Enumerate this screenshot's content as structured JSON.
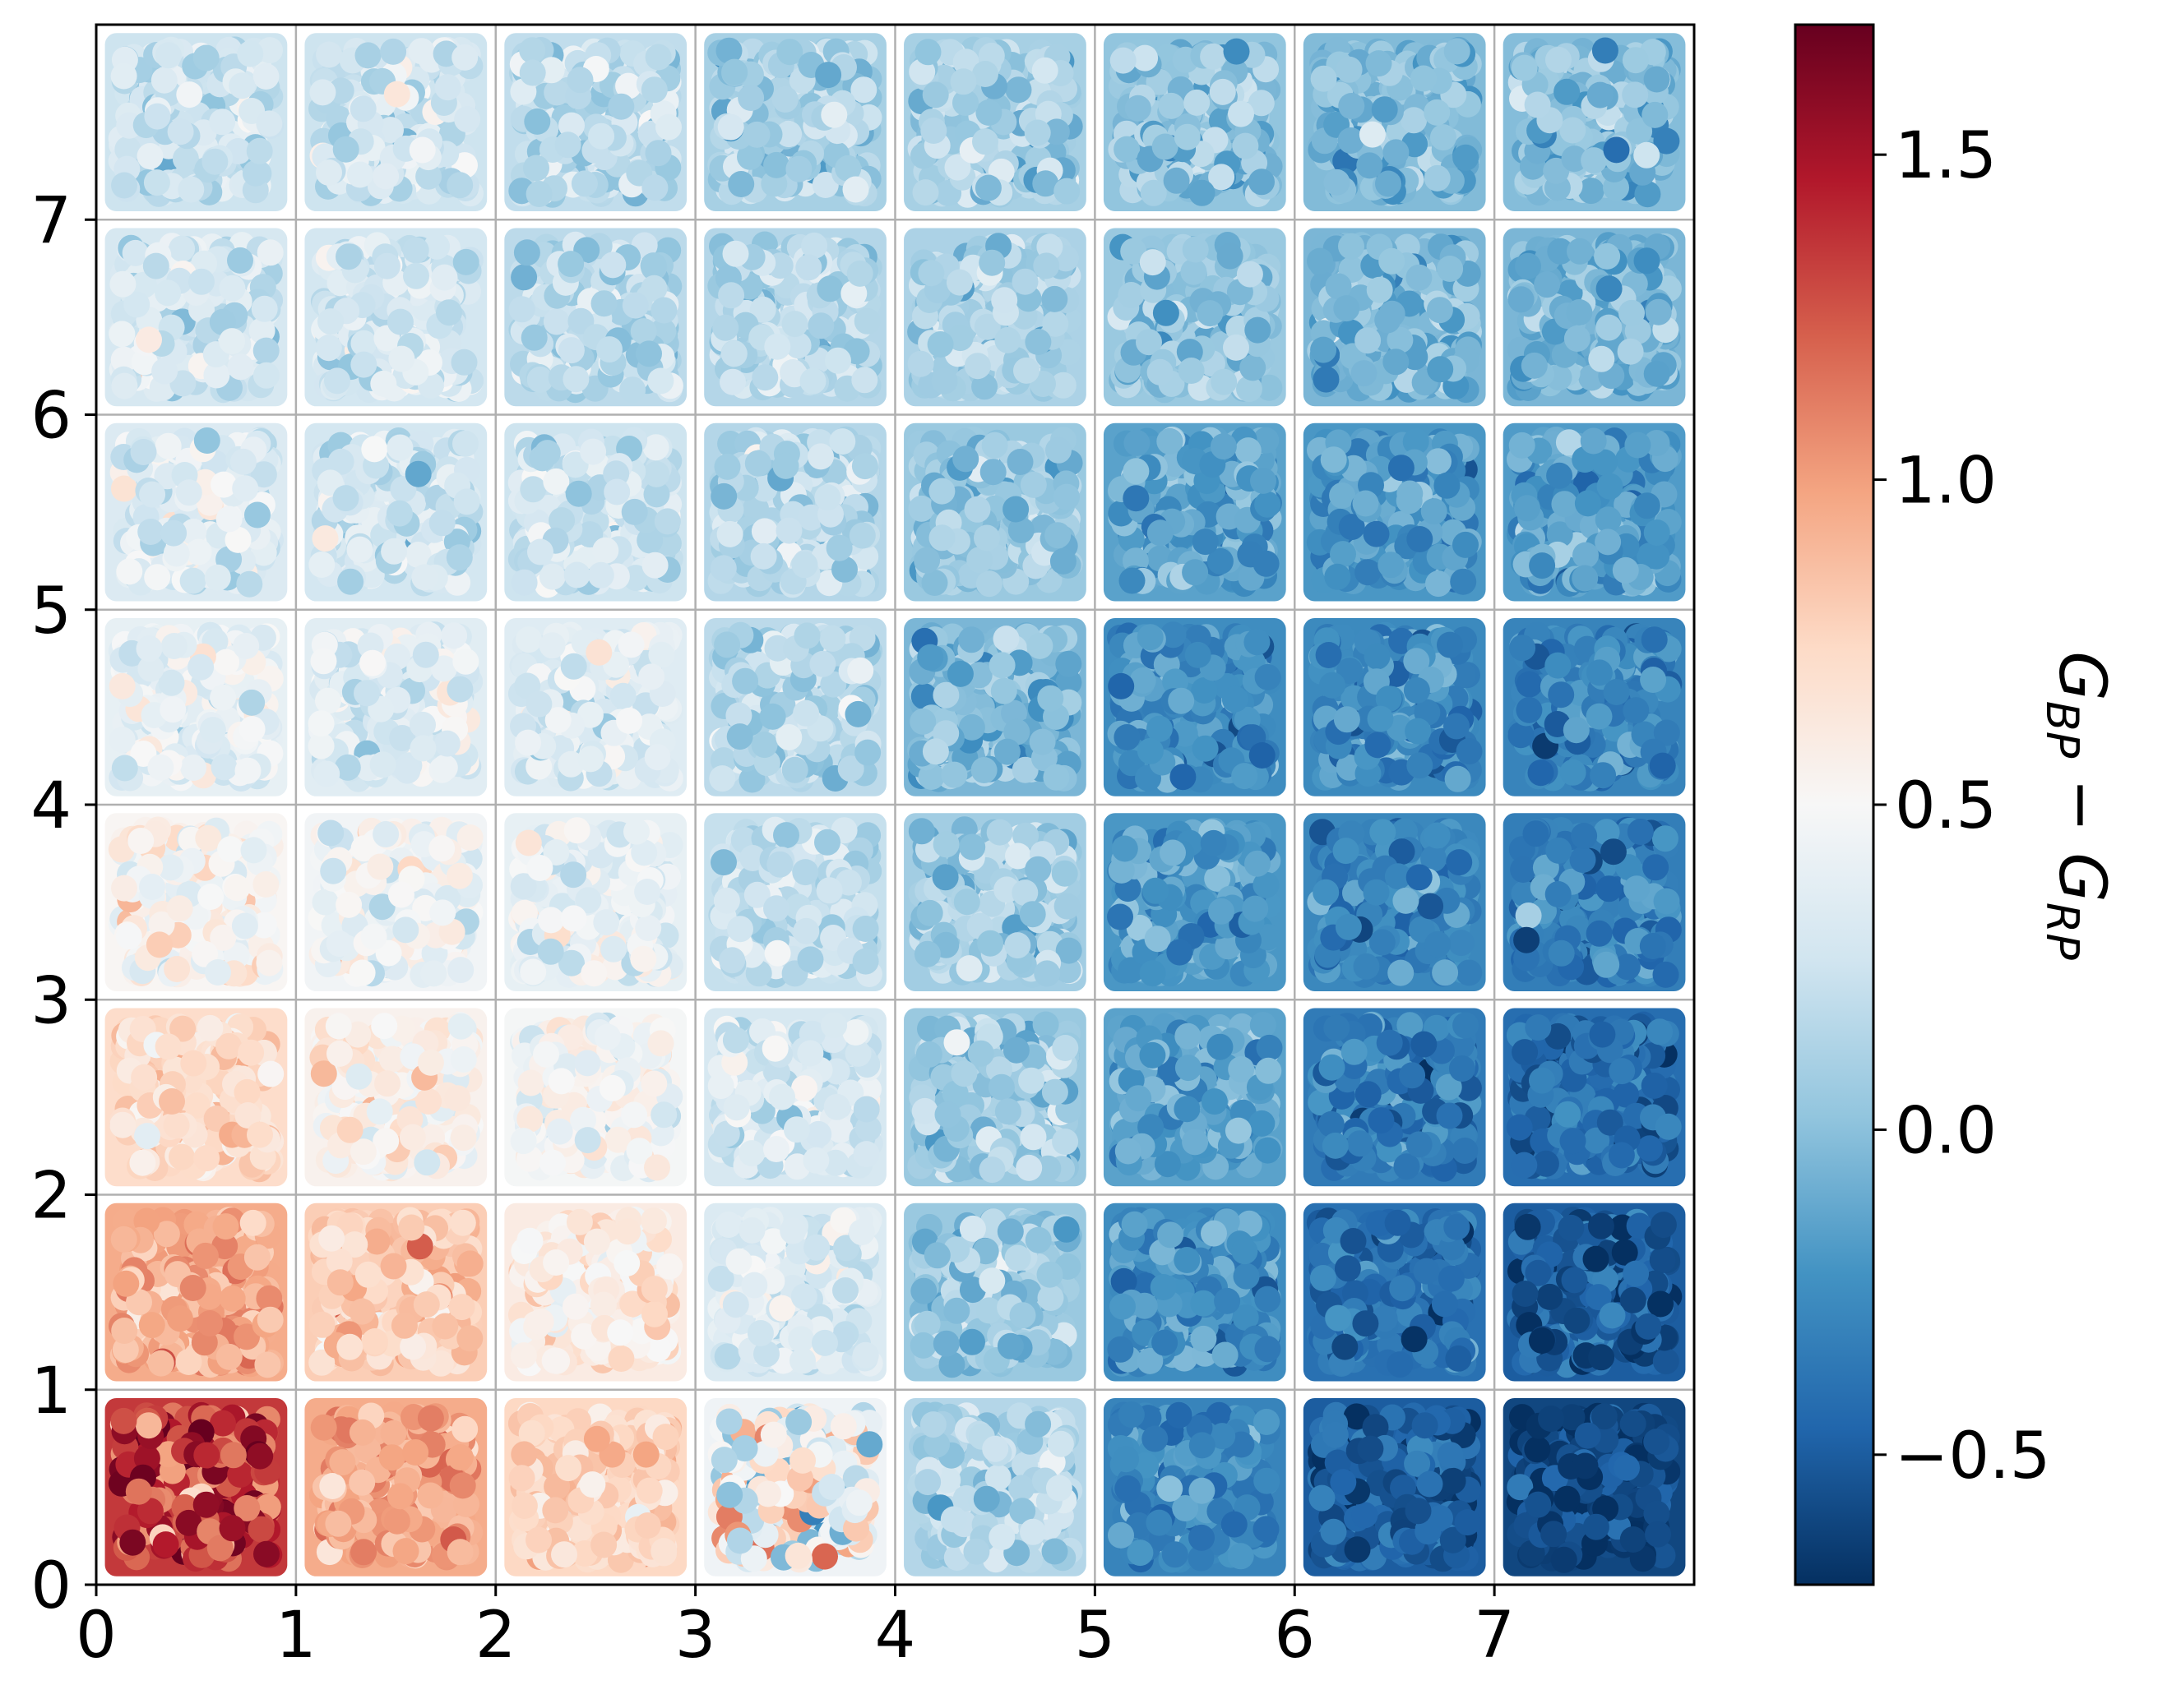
{
  "chart_data": {
    "type": "heatmap",
    "title": "",
    "xlabel": "",
    "ylabel": "",
    "colorbar_label": "G_BP − G_RP",
    "colorbar_label_parts": {
      "main": "G",
      "sub1": "BP",
      "minus": " − ",
      "sub2": "RP"
    },
    "colormap": "RdBu_r",
    "colormap_stops": [
      "#053061",
      "#2166ac",
      "#4393c3",
      "#92c5de",
      "#d1e5f0",
      "#f7f7f7",
      "#fddbc7",
      "#f4a582",
      "#d6604d",
      "#b2182b",
      "#67001f"
    ],
    "grid": true,
    "xlim": [
      0,
      8
    ],
    "ylim": [
      0,
      8
    ],
    "xticks": [
      0,
      1,
      2,
      3,
      4,
      5,
      6,
      7
    ],
    "yticks": [
      0,
      1,
      2,
      3,
      4,
      5,
      6,
      7
    ],
    "xtick_labels": [
      "0",
      "1",
      "2",
      "3",
      "4",
      "5",
      "6",
      "7"
    ],
    "ytick_labels": [
      "0",
      "1",
      "2",
      "3",
      "4",
      "5",
      "6",
      "7"
    ],
    "colorbar_range": [
      -0.7,
      1.7
    ],
    "colorbar_ticks": [
      -0.5,
      0.0,
      0.5,
      1.0,
      1.5
    ],
    "colorbar_tick_labels": [
      "−0.5",
      "0.0",
      "0.5",
      "1.0",
      "1.5"
    ],
    "cell_values_rows_bottom_to_top": [
      [
        1.35,
        0.95,
        0.75,
        0.45,
        0.15,
        -0.3,
        -0.5,
        -0.6
      ],
      [
        0.95,
        0.8,
        0.6,
        0.32,
        0.05,
        -0.25,
        -0.4,
        -0.5
      ],
      [
        0.72,
        0.55,
        0.48,
        0.3,
        0.05,
        -0.15,
        -0.35,
        -0.42
      ],
      [
        0.52,
        0.46,
        0.4,
        0.22,
        0.08,
        -0.2,
        -0.28,
        -0.33
      ],
      [
        0.4,
        0.36,
        0.35,
        0.18,
        -0.05,
        -0.25,
        -0.27,
        -0.3
      ],
      [
        0.33,
        0.28,
        0.25,
        0.15,
        0.05,
        -0.15,
        -0.2,
        -0.18
      ],
      [
        0.3,
        0.28,
        0.18,
        0.15,
        0.12,
        0.05,
        -0.05,
        -0.05
      ],
      [
        0.25,
        0.25,
        0.2,
        0.1,
        0.1,
        0.02,
        -0.03,
        -0.02
      ]
    ]
  }
}
